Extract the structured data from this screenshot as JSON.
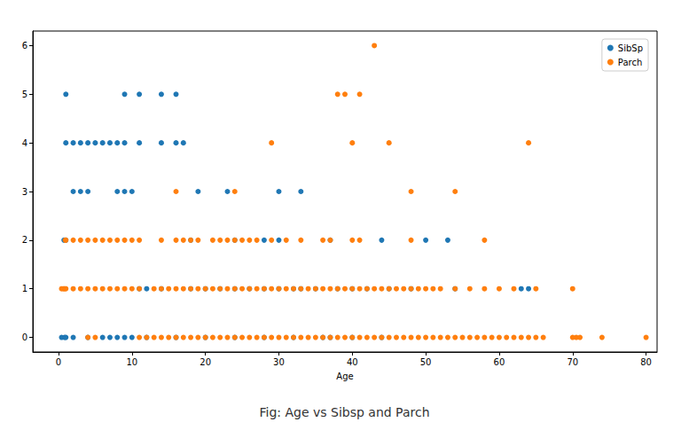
{
  "chart_data": {
    "type": "scatter",
    "title": "Fig: Age vs Sibsp and Parch",
    "x_label": "Age",
    "xlim": [
      -3.5,
      81.5
    ],
    "xticks": [
      0,
      10,
      20,
      30,
      40,
      50,
      60,
      70,
      80
    ],
    "ylim": [
      -0.3,
      6.3
    ],
    "yticks": [
      0,
      1,
      2,
      3,
      4,
      5,
      6
    ],
    "grid": false,
    "legend": "upper right",
    "marker": "circle",
    "series": [
      {
        "name": "SibSp",
        "color": "#1f77b4",
        "x": [
          1,
          9,
          11,
          14,
          16,
          1,
          2,
          3,
          4,
          5,
          6,
          7,
          8,
          9,
          11,
          14,
          16,
          17,
          2,
          3,
          4,
          8,
          9,
          10,
          19,
          23,
          30,
          33,
          0.75,
          1,
          18,
          24,
          28,
          30,
          37,
          44,
          50,
          53,
          11,
          12,
          14,
          18,
          20,
          22,
          24,
          26,
          28,
          30,
          32,
          33,
          35,
          38,
          40,
          42,
          45,
          48,
          54,
          63,
          64,
          0.42,
          0.83,
          1,
          2,
          4,
          6,
          7,
          8,
          9,
          10,
          12,
          16,
          20,
          24,
          28,
          32,
          36,
          37,
          40,
          44
        ],
        "values": [
          5,
          5,
          5,
          5,
          5,
          4,
          4,
          4,
          4,
          4,
          4,
          4,
          4,
          4,
          4,
          4,
          4,
          4,
          3,
          3,
          3,
          3,
          3,
          3,
          3,
          3,
          3,
          3,
          2,
          2,
          2,
          2,
          2,
          2,
          2,
          2,
          2,
          2,
          1,
          1,
          1,
          1,
          1,
          1,
          1,
          1,
          1,
          1,
          1,
          1,
          1,
          1,
          1,
          1,
          1,
          1,
          1,
          1,
          1,
          0,
          0,
          0,
          0,
          0,
          0,
          0,
          0,
          0,
          0,
          0,
          0,
          0,
          0,
          0,
          0,
          0,
          0,
          0,
          0
        ]
      },
      {
        "name": "Parch",
        "color": "#ff7f0e",
        "x": [
          43,
          38,
          39,
          41,
          29,
          40,
          45,
          64,
          16,
          24,
          48,
          54,
          0.92,
          1,
          2,
          3,
          4,
          5,
          6,
          7,
          8,
          9,
          10,
          11,
          14,
          16,
          17,
          18,
          19,
          21,
          22,
          23,
          24,
          25,
          26,
          27,
          29,
          31,
          33,
          36,
          37,
          40,
          41,
          48,
          58,
          0.42,
          0.67,
          0.83,
          1,
          2,
          3,
          4,
          5,
          6,
          7,
          8,
          9,
          10,
          11,
          13,
          14,
          15,
          16,
          17,
          18,
          19,
          20,
          21,
          22,
          23,
          24,
          25,
          26,
          27,
          28,
          29,
          30,
          31,
          32,
          33,
          34,
          35,
          36,
          37,
          38,
          39,
          40,
          41,
          42,
          43,
          44,
          45,
          46,
          47,
          48,
          49,
          50,
          51,
          52,
          54,
          56,
          58,
          60,
          62,
          65,
          70,
          4,
          5,
          11,
          12,
          13,
          14,
          15,
          16,
          17,
          18,
          19,
          20,
          21,
          22,
          23,
          24,
          25,
          26,
          27,
          28,
          29,
          30,
          31,
          32,
          33,
          34,
          35,
          36,
          37,
          38,
          39,
          40,
          41,
          42,
          43,
          44,
          45,
          46,
          47,
          48,
          49,
          50,
          51,
          52,
          53,
          54,
          55,
          56,
          57,
          58,
          59,
          60,
          61,
          62,
          63,
          64,
          65,
          66,
          70,
          70.5,
          71,
          74,
          80
        ],
        "values": [
          6,
          5,
          5,
          5,
          4,
          4,
          4,
          4,
          3,
          3,
          3,
          3,
          2,
          2,
          2,
          2,
          2,
          2,
          2,
          2,
          2,
          2,
          2,
          2,
          2,
          2,
          2,
          2,
          2,
          2,
          2,
          2,
          2,
          2,
          2,
          2,
          2,
          2,
          2,
          2,
          2,
          2,
          2,
          2,
          2,
          1,
          1,
          1,
          1,
          1,
          1,
          1,
          1,
          1,
          1,
          1,
          1,
          1,
          1,
          1,
          1,
          1,
          1,
          1,
          1,
          1,
          1,
          1,
          1,
          1,
          1,
          1,
          1,
          1,
          1,
          1,
          1,
          1,
          1,
          1,
          1,
          1,
          1,
          1,
          1,
          1,
          1,
          1,
          1,
          1,
          1,
          1,
          1,
          1,
          1,
          1,
          1,
          1,
          1,
          1,
          1,
          1,
          1,
          1,
          1,
          1,
          0,
          0,
          0,
          0,
          0,
          0,
          0,
          0,
          0,
          0,
          0,
          0,
          0,
          0,
          0,
          0,
          0,
          0,
          0,
          0,
          0,
          0,
          0,
          0,
          0,
          0,
          0,
          0,
          0,
          0,
          0,
          0,
          0,
          0,
          0,
          0,
          0,
          0,
          0,
          0,
          0,
          0,
          0,
          0,
          0,
          0,
          0,
          0,
          0,
          0,
          0,
          0,
          0,
          0,
          0,
          0,
          0,
          0,
          0,
          0,
          0,
          0,
          0
        ]
      }
    ]
  }
}
